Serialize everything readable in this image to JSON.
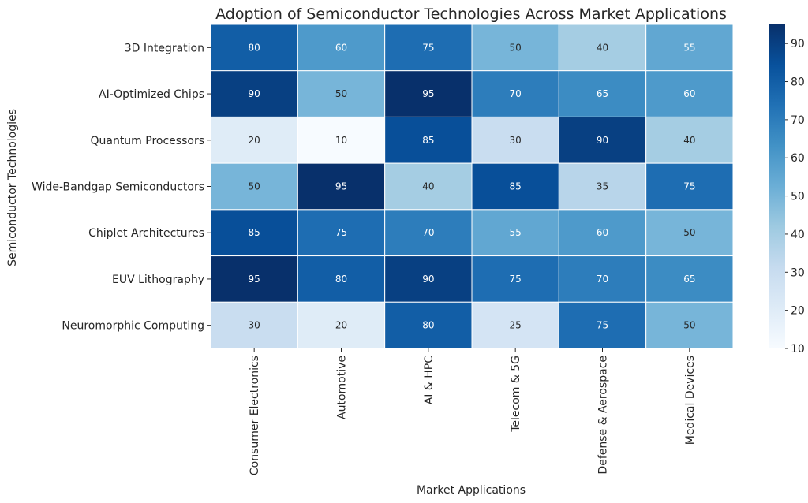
{
  "chart_data": {
    "type": "heatmap",
    "title": "Adoption of Semiconductor Technologies Across Market Applications",
    "xlabel": "Market Applications",
    "ylabel": "Semiconductor Technologies",
    "x_categories": [
      "Consumer Electronics",
      "Automotive",
      "AI & HPC",
      "Telecom & 5G",
      "Defense & Aerospace",
      "Medical Devices"
    ],
    "y_categories": [
      "3D Integration",
      "AI-Optimized Chips",
      "Quantum Processors",
      "Wide-Bandgap Semiconductors",
      "Chiplet Architectures",
      "EUV Lithography",
      "Neuromorphic Computing"
    ],
    "values": [
      [
        80,
        60,
        75,
        50,
        40,
        55
      ],
      [
        90,
        50,
        95,
        70,
        65,
        60
      ],
      [
        20,
        10,
        85,
        30,
        90,
        40
      ],
      [
        50,
        95,
        40,
        85,
        35,
        75
      ],
      [
        85,
        75,
        70,
        55,
        60,
        50
      ],
      [
        95,
        80,
        90,
        75,
        70,
        65
      ],
      [
        30,
        20,
        80,
        25,
        75,
        50
      ]
    ],
    "colormap": "Blues",
    "value_range": [
      10,
      95
    ],
    "colorbar_ticks": [
      10,
      20,
      30,
      40,
      50,
      60,
      70,
      80,
      90
    ],
    "annotations": true
  }
}
